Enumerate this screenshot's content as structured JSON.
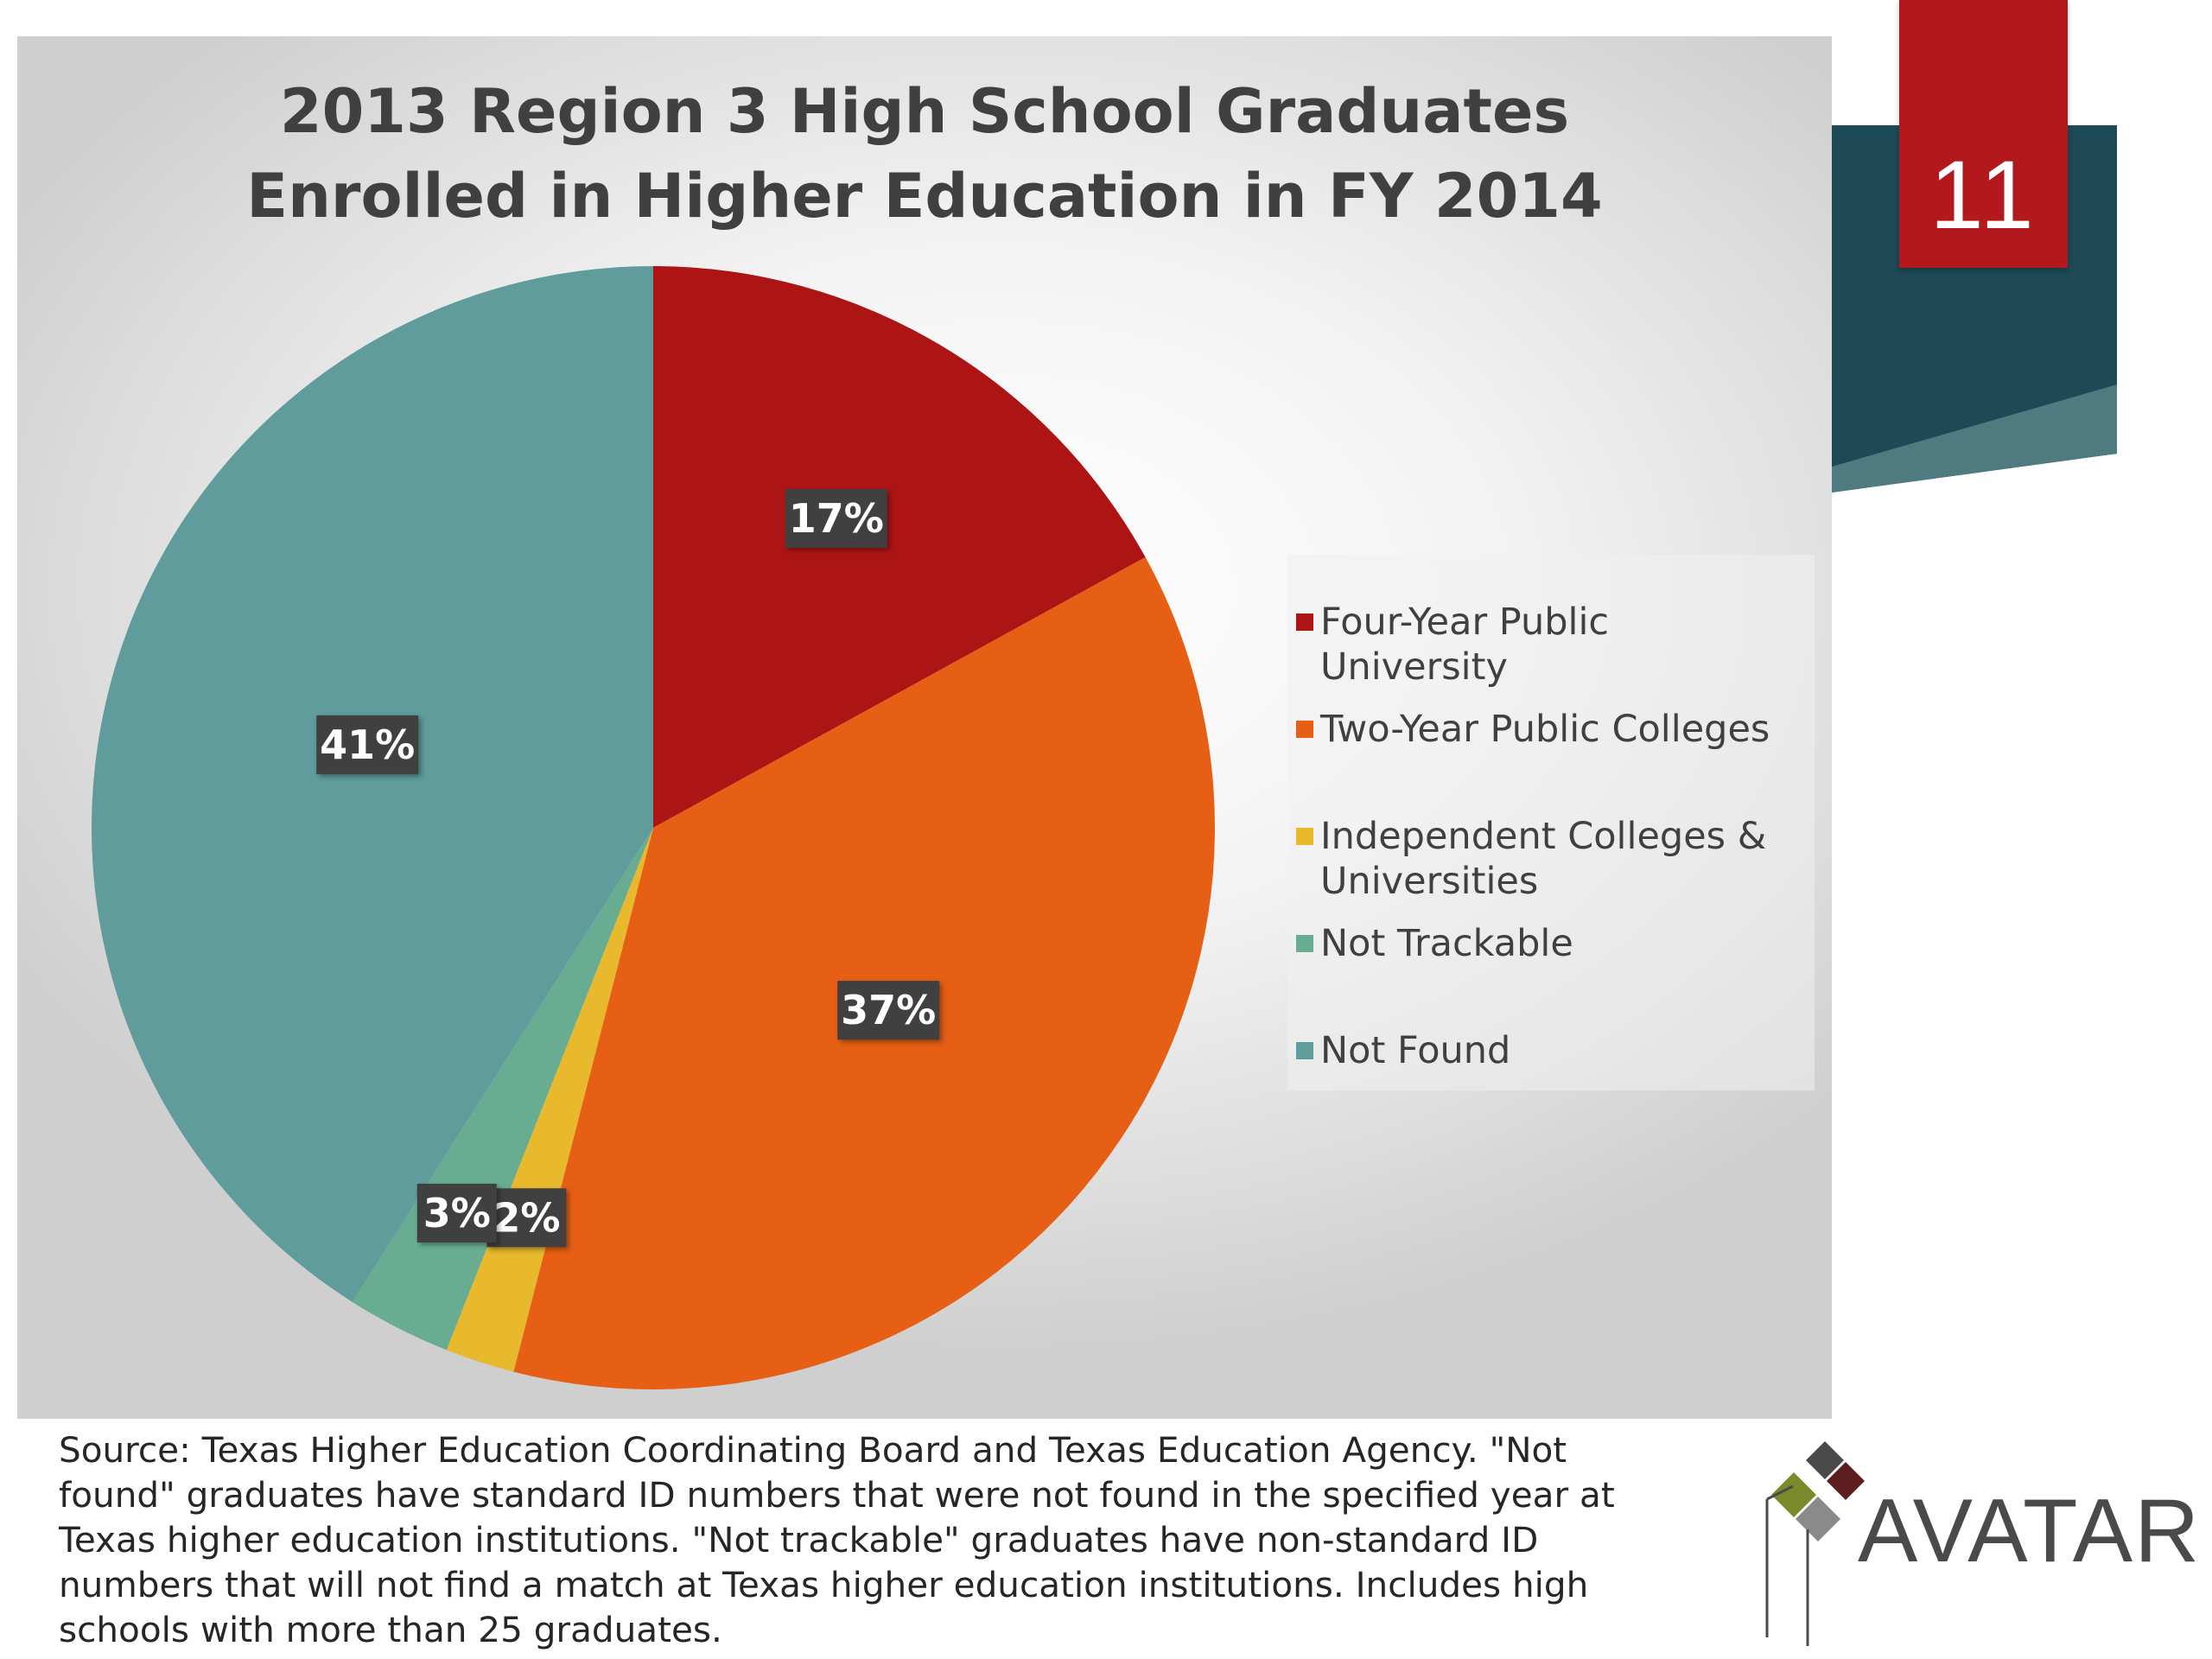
{
  "slide": {
    "page_number": "11"
  },
  "chart_data": {
    "type": "pie",
    "title": "2013 Region 3 High School Graduates Enrolled in Higher Education in FY 2014",
    "title_lines": [
      "2013 Region 3 High School Graduates",
      "Enrolled in Higher Education in FY 2014"
    ],
    "legend_position": "right",
    "slices": [
      {
        "name": "Four-Year Public University",
        "value": 17,
        "label": "17%",
        "color": "#ad1515"
      },
      {
        "name": "Two-Year Public Colleges",
        "value": 37,
        "label": "37%",
        "color": "#e65f14"
      },
      {
        "name": "Independent Colleges & Universities",
        "value": 2,
        "label": "2%",
        "color": "#e8b92d"
      },
      {
        "name": "Not Trackable",
        "value": 3,
        "label": "3%",
        "color": "#68ad91"
      },
      {
        "name": "Not Found",
        "value": 41,
        "label": "41%",
        "color": "#5f9c9b"
      }
    ]
  },
  "legend": {
    "items": [
      {
        "label": "Four-Year Public University",
        "color": "#ad1515"
      },
      {
        "label": "Two-Year Public Colleges",
        "color": "#e65f14"
      },
      {
        "label_line1": "Independent Colleges &",
        "label_line2": "Universities",
        "color": "#e8b92d"
      },
      {
        "label": "Not Trackable",
        "color": "#68ad91"
      },
      {
        "label": "Not Found",
        "color": "#5f9c9b"
      }
    ]
  },
  "source_note": {
    "lines": [
      "Source: Texas Higher Education Coordinating Board and Texas Education Agency. \"Not",
      "found\" graduates have standard ID numbers that were not found in the specified year at",
      "Texas higher education institutions. \"Not trackable\" graduates have non-standard ID",
      "numbers that will not find a match at Texas higher education institutions. Includes high",
      "schools with more than 25 graduates."
    ]
  },
  "logo": {
    "text": "AVATAR",
    "colors": [
      "#7a8a2a",
      "#5c1e1e",
      "#4a4a4a",
      "#8a8a8a"
    ]
  },
  "theme": {
    "accent_red": "#b3191c",
    "ribbon_dark": "#1d4a55",
    "ribbon_light": "#4f7a80"
  }
}
